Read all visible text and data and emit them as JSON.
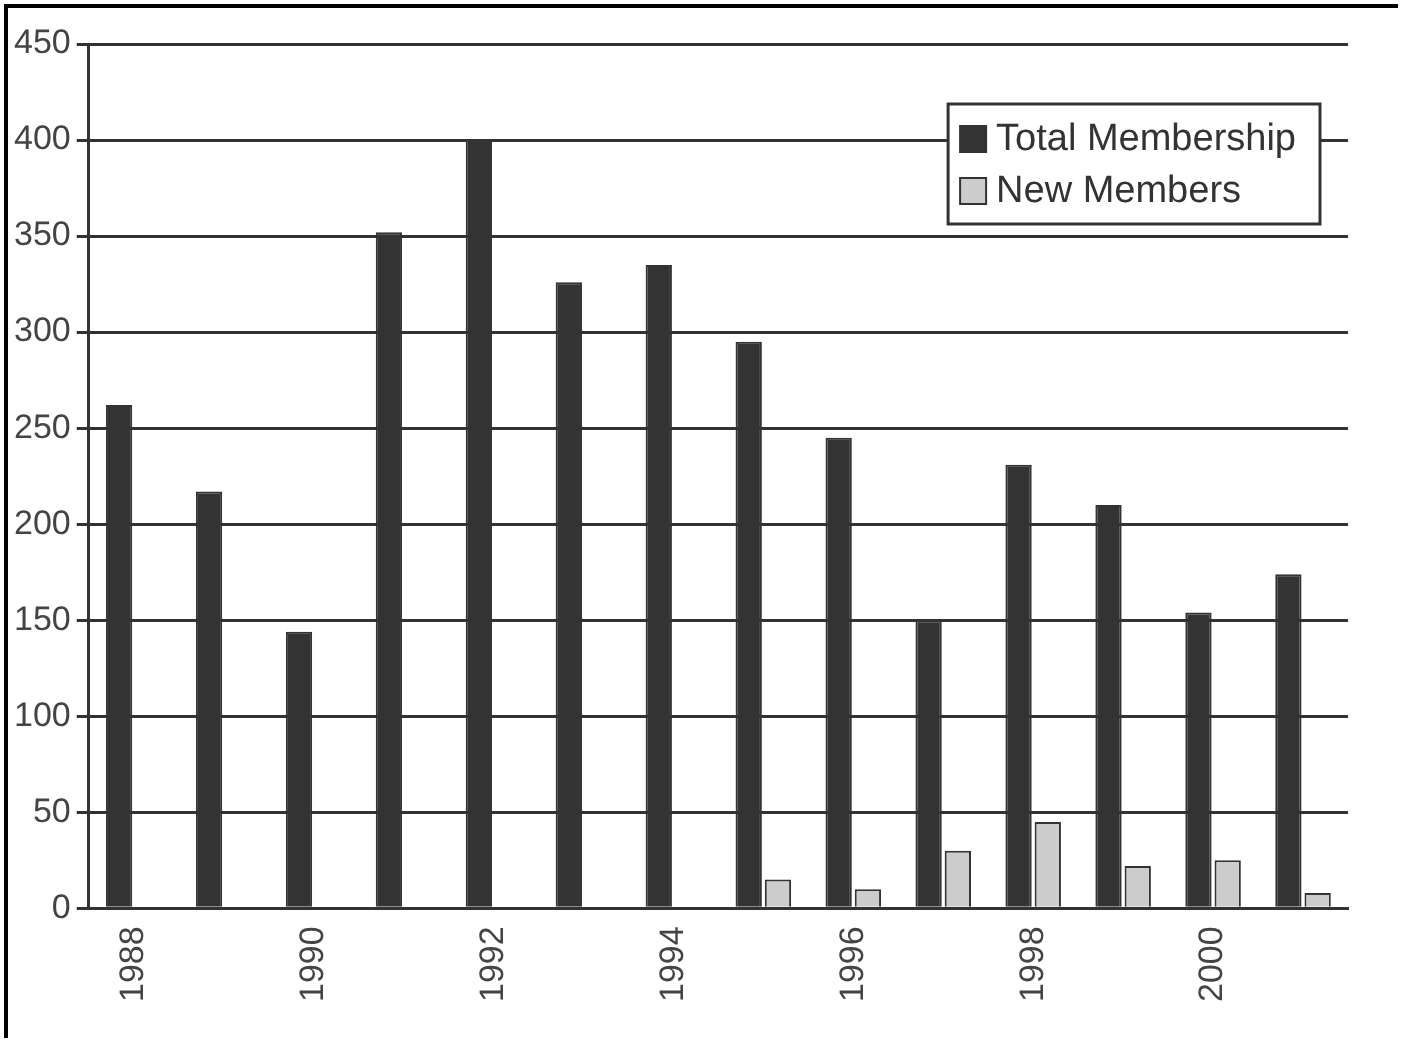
{
  "chart_data": {
    "type": "bar",
    "categories": [
      "1988",
      null,
      "1990",
      null,
      "1992",
      null,
      "1994",
      null,
      "1996",
      null,
      "1998",
      null,
      "2000",
      null
    ],
    "series": [
      {
        "name": "Total Membership",
        "color": "#333333",
        "values": [
          262,
          217,
          144,
          352,
          400,
          326,
          335,
          295,
          245,
          150,
          231,
          210,
          154,
          174
        ]
      },
      {
        "name": "New Members",
        "color": "#cccccc",
        "values": [
          0,
          0,
          0,
          0,
          0,
          0,
          0,
          15,
          10,
          30,
          45,
          22,
          25,
          8
        ]
      }
    ],
    "ylim": [
      0,
      450
    ],
    "yticks": [
      0,
      50,
      100,
      150,
      200,
      250,
      300,
      350,
      400,
      450
    ],
    "grid": "y",
    "legend": "top right"
  }
}
